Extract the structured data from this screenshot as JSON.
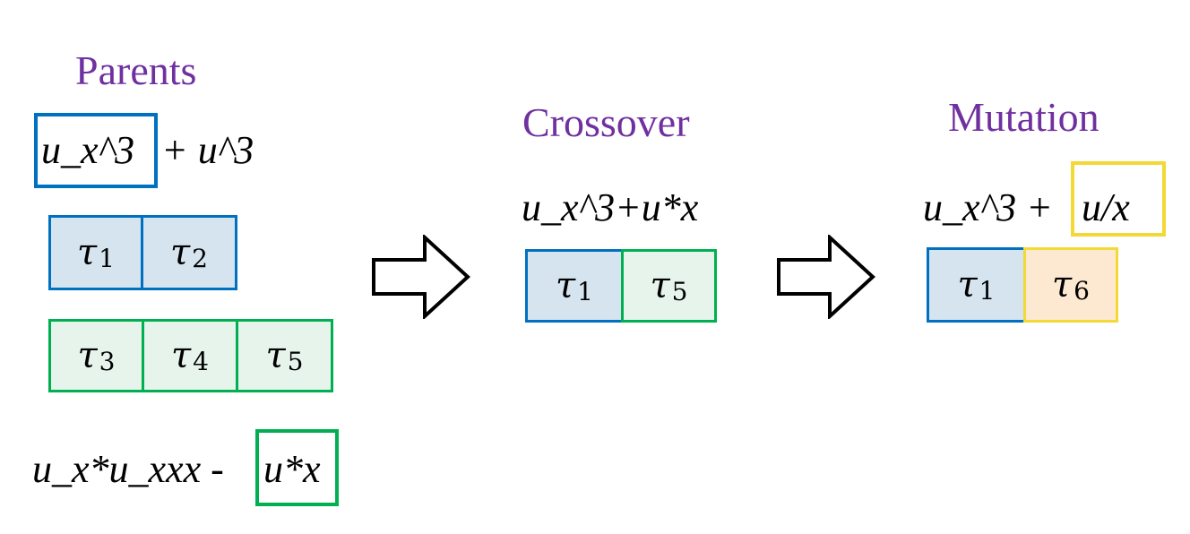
{
  "colors": {
    "title": "#7030a0",
    "blue": "#0070c0",
    "blue_fill": "#d6e4ef",
    "green": "#00b050",
    "green_fill": "#e6f4ec",
    "yellow": "#f2d935",
    "yellow_fill": "#fde9d2",
    "arrow": "#000000"
  },
  "parents": {
    "title": "Parents",
    "expr1": {
      "boxed": "u_x^3",
      "rest": " + u^3"
    },
    "tokens_a": [
      {
        "sym": "τ",
        "sub": "1"
      },
      {
        "sym": "τ",
        "sub": "2"
      }
    ],
    "tokens_b": [
      {
        "sym": "τ",
        "sub": "3"
      },
      {
        "sym": "τ",
        "sub": "4"
      },
      {
        "sym": "τ",
        "sub": "5"
      }
    ],
    "expr2": {
      "rest": "u_x*u_xxx - ",
      "boxed": "u*x"
    }
  },
  "crossover": {
    "title": "Crossover",
    "expr": "u_x^3+u*x",
    "tokens": [
      {
        "sym": "τ",
        "sub": "1"
      },
      {
        "sym": "τ",
        "sub": "5"
      }
    ]
  },
  "mutation": {
    "title": "Mutation",
    "expr": {
      "rest": "u_x^3 + ",
      "boxed": "u/x"
    },
    "tokens": [
      {
        "sym": "τ",
        "sub": "1"
      },
      {
        "sym": "τ",
        "sub": "6"
      }
    ]
  },
  "arrows": [
    "right-arrow",
    "right-arrow"
  ]
}
